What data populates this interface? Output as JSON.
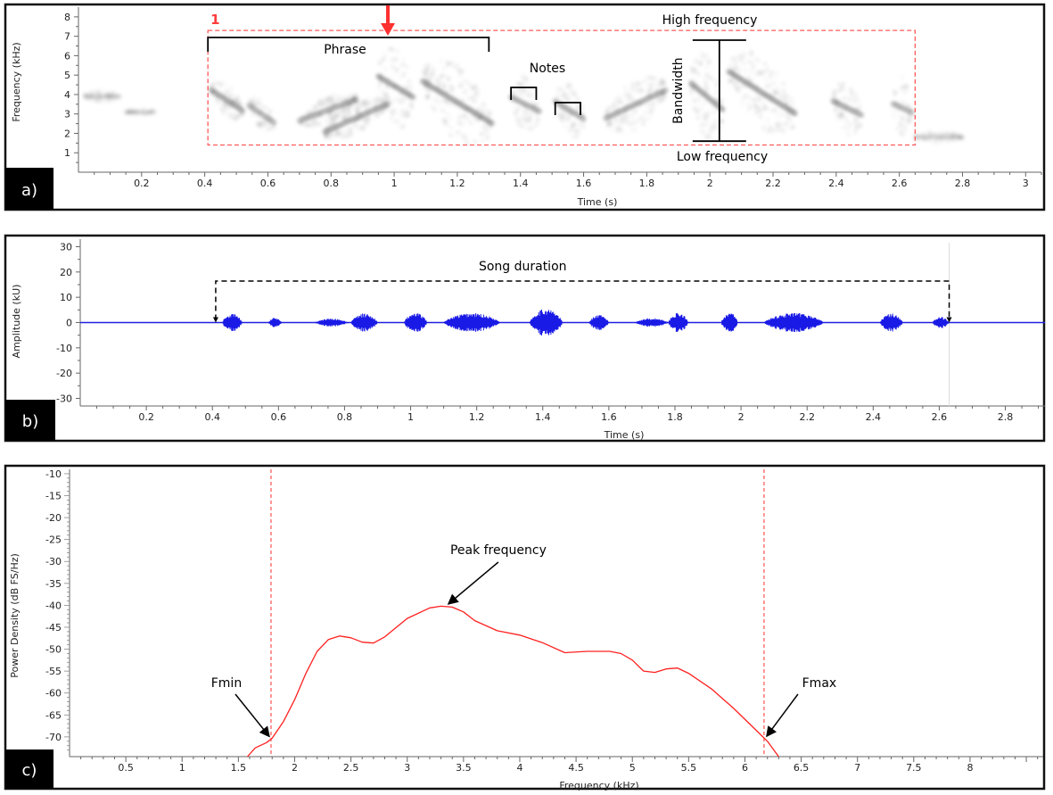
{
  "panels": {
    "a": {
      "label": "a)"
    },
    "b": {
      "label": "b)"
    },
    "c": {
      "label": "c)"
    }
  },
  "chart_data": [
    {
      "id": "a",
      "type": "heatmap",
      "title": "",
      "xlabel": "Time (s)",
      "ylabel": "Frequency (kHz)",
      "xlim": [
        0,
        3.05
      ],
      "ylim": [
        0,
        8.5
      ],
      "x_ticks": [
        "0.2",
        "0.4",
        "0.6",
        "0.8",
        "1",
        "1.2",
        "1.4",
        "1.6",
        "1.8",
        "2",
        "2.2",
        "2.4",
        "2.6",
        "2.8",
        "3"
      ],
      "y_ticks": [
        "1",
        "2",
        "3",
        "4",
        "5",
        "6",
        "7",
        "8"
      ],
      "box": {
        "t0": 0.41,
        "t1": 2.65,
        "f0": 1.4,
        "f1": 7.3
      },
      "box_label": "1",
      "annotations": {
        "phrase": "Phrase",
        "notes": "Notes",
        "high_frequency": "High frequency",
        "low_frequency": "Low frequency",
        "bandwidth": "Bandwidth"
      },
      "phrase_span": [
        0.41,
        1.3
      ],
      "note_spans": [
        [
          1.37,
          1.45
        ],
        [
          1.51,
          1.59
        ]
      ],
      "bandwidth_at": 2.03,
      "bandwidth_range": [
        1.6,
        6.8
      ],
      "arrow_time": 0.98,
      "syllables": [
        {
          "t0": 0.02,
          "t1": 0.13,
          "fc": 3.9,
          "bw": 0.6,
          "s": 0,
          "d": 0.35
        },
        {
          "t0": 0.15,
          "t1": 0.24,
          "fc": 3.1,
          "bw": 0.3,
          "s": 0,
          "d": 0.25
        },
        {
          "t0": 0.42,
          "t1": 0.52,
          "fc": 3.7,
          "bw": 1.8,
          "s": -1.2,
          "d": 0.95
        },
        {
          "t0": 0.54,
          "t1": 0.62,
          "fc": 3.0,
          "bw": 1.6,
          "s": -1.0,
          "d": 0.8
        },
        {
          "t0": 0.7,
          "t1": 0.88,
          "fc": 3.2,
          "bw": 1.3,
          "s": 1.2,
          "d": 0.85
        },
        {
          "t0": 0.78,
          "t1": 0.98,
          "fc": 2.8,
          "bw": 1.6,
          "s": 1.6,
          "d": 0.9
        },
        {
          "t0": 0.95,
          "t1": 1.06,
          "fc": 4.4,
          "bw": 4.2,
          "s": -1.2,
          "d": 1
        },
        {
          "t0": 1.09,
          "t1": 1.31,
          "fc": 3.6,
          "bw": 4.0,
          "s": -2.4,
          "d": 1
        },
        {
          "t0": 1.37,
          "t1": 1.46,
          "fc": 3.5,
          "bw": 2.8,
          "s": -0.8,
          "d": 0.9
        },
        {
          "t0": 1.51,
          "t1": 1.6,
          "fc": 3.2,
          "bw": 2.8,
          "s": -1.0,
          "d": 0.9
        },
        {
          "t0": 1.67,
          "t1": 1.86,
          "fc": 3.5,
          "bw": 2.6,
          "s": 1.6,
          "d": 0.9
        },
        {
          "t0": 1.94,
          "t1": 2.04,
          "fc": 3.9,
          "bw": 4.4,
          "s": -1.5,
          "d": 1
        },
        {
          "t0": 2.06,
          "t1": 2.27,
          "fc": 4.1,
          "bw": 3.8,
          "s": -2.4,
          "d": 1
        },
        {
          "t0": 2.39,
          "t1": 2.48,
          "fc": 3.3,
          "bw": 3.0,
          "s": -0.8,
          "d": 0.9
        },
        {
          "t0": 2.58,
          "t1": 2.64,
          "fc": 3.3,
          "bw": 3.2,
          "s": -0.5,
          "d": 0.85
        },
        {
          "t0": 2.65,
          "t1": 2.8,
          "fc": 1.8,
          "bw": 0.6,
          "s": 0,
          "d": 0.3
        }
      ]
    },
    {
      "id": "b",
      "type": "line",
      "title": "",
      "xlabel": "Time (s)",
      "ylabel": "Amplitude (kU)",
      "xlim": [
        0,
        2.92
      ],
      "ylim": [
        -33,
        33
      ],
      "x_ticks": [
        "0.2",
        "0.4",
        "0.6",
        "0.8",
        "1",
        "1.2",
        "1.4",
        "1.6",
        "1.8",
        "2",
        "2.2",
        "2.4",
        "2.6",
        "2.8"
      ],
      "y_ticks": [
        "30",
        "20",
        "10",
        "0",
        "-10",
        "-20",
        "-30"
      ],
      "annotation": "Song duration",
      "duration_span": [
        0.41,
        2.63
      ],
      "bursts": [
        {
          "t0": 0.43,
          "t1": 0.49,
          "a": 3.5
        },
        {
          "t0": 0.57,
          "t1": 0.61,
          "a": 2.0
        },
        {
          "t0": 0.71,
          "t1": 0.81,
          "a": 1.6
        },
        {
          "t0": 0.82,
          "t1": 0.9,
          "a": 3.6
        },
        {
          "t0": 0.98,
          "t1": 1.05,
          "a": 3.8
        },
        {
          "t0": 1.1,
          "t1": 1.27,
          "a": 3.8
        },
        {
          "t0": 1.36,
          "t1": 1.46,
          "a": 5.5
        },
        {
          "t0": 1.54,
          "t1": 1.6,
          "a": 3.0
        },
        {
          "t0": 1.68,
          "t1": 1.78,
          "a": 1.8
        },
        {
          "t0": 1.78,
          "t1": 1.84,
          "a": 3.8
        },
        {
          "t0": 1.94,
          "t1": 1.99,
          "a": 4.0
        },
        {
          "t0": 2.07,
          "t1": 2.25,
          "a": 3.8
        },
        {
          "t0": 2.42,
          "t1": 2.49,
          "a": 3.6
        },
        {
          "t0": 2.58,
          "t1": 2.63,
          "a": 2.2
        }
      ]
    },
    {
      "id": "c",
      "type": "line",
      "title": "",
      "xlabel": "Frequency (kHz)",
      "ylabel": "Power Density (dB FS/Hz)",
      "xlim": [
        0,
        8.65
      ],
      "ylim": [
        -74.5,
        -9
      ],
      "x_ticks": [
        "0.5",
        "1",
        "1.5",
        "2",
        "2.5",
        "3",
        "3.5",
        "4",
        "4.5",
        "5",
        "5.5",
        "6",
        "6.5",
        "7",
        "7.5",
        "8"
      ],
      "y_ticks": [
        "-10",
        "-15",
        "-20",
        "-25",
        "-30",
        "-35",
        "-40",
        "-45",
        "-50",
        "-55",
        "-60",
        "-65",
        "-70"
      ],
      "annotations": {
        "peak": "Peak frequency",
        "fmin": "Fmin",
        "fmax": "Fmax"
      },
      "fmin": 1.79,
      "fmax": 6.17,
      "peak": 3.35,
      "x": [
        1.58,
        1.65,
        1.75,
        1.8,
        1.9,
        2.0,
        2.1,
        2.2,
        2.3,
        2.4,
        2.5,
        2.6,
        2.7,
        2.8,
        3.0,
        3.2,
        3.3,
        3.4,
        3.5,
        3.6,
        3.8,
        4.0,
        4.2,
        4.4,
        4.6,
        4.8,
        4.9,
        5.0,
        5.1,
        5.2,
        5.3,
        5.4,
        5.5,
        5.7,
        5.9,
        6.1,
        6.2,
        6.3
      ],
      "y": [
        -74.5,
        -72.5,
        -71.3,
        -70.3,
        -66.5,
        -61.5,
        -55.5,
        -50.5,
        -47.8,
        -47.0,
        -47.4,
        -48.4,
        -48.6,
        -47.2,
        -43.0,
        -40.6,
        -40.2,
        -40.4,
        -41.5,
        -43.5,
        -45.8,
        -46.8,
        -48.5,
        -50.8,
        -50.5,
        -50.5,
        -51.0,
        -52.5,
        -55.0,
        -55.3,
        -54.5,
        -54.3,
        -55.5,
        -59.0,
        -63.5,
        -68.5,
        -71.0,
        -74.5
      ]
    }
  ]
}
